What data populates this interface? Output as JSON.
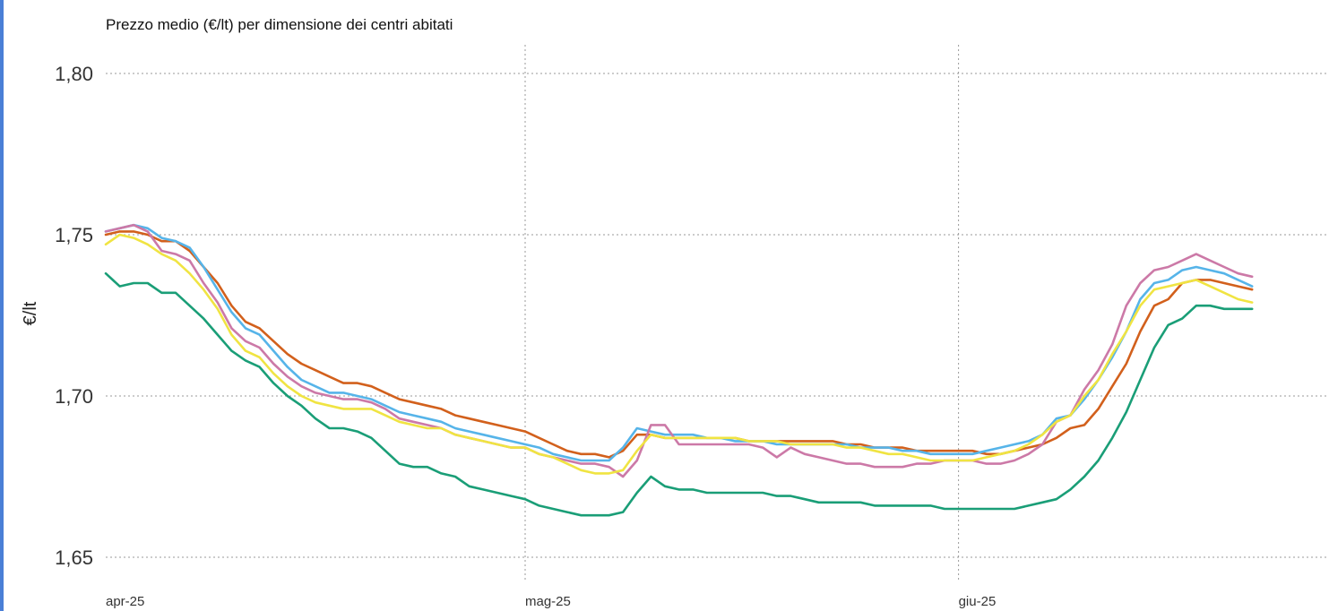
{
  "chart_data": {
    "type": "line",
    "title": "Prezzo medio (€/lt) per dimensione dei centri abitati",
    "ylabel": "€/lt",
    "xlabel": "",
    "ylim": [
      1.645,
      1.81
    ],
    "yticks": [
      {
        "value": 1.65,
        "label": "1,65"
      },
      {
        "value": 1.7,
        "label": "1,70"
      },
      {
        "value": 1.75,
        "label": "1,75"
      },
      {
        "value": 1.8,
        "label": "1,80"
      }
    ],
    "xlim": [
      0,
      82
    ],
    "xticks": [
      {
        "value": 0,
        "label": "apr-25"
      },
      {
        "value": 30,
        "label": "mag-25"
      },
      {
        "value": 61,
        "label": "giu-25"
      }
    ],
    "grid": true,
    "legend": "none",
    "x": [
      0,
      1,
      2,
      3,
      4,
      5,
      6,
      7,
      8,
      9,
      10,
      11,
      12,
      13,
      14,
      15,
      16,
      17,
      18,
      19,
      20,
      21,
      22,
      23,
      24,
      25,
      26,
      27,
      28,
      29,
      30,
      31,
      32,
      33,
      34,
      35,
      36,
      37,
      38,
      39,
      40,
      41,
      42,
      43,
      44,
      45,
      46,
      47,
      48,
      49,
      50,
      51,
      52,
      53,
      54,
      55,
      56,
      57,
      58,
      59,
      60,
      61,
      62,
      63,
      64,
      65,
      66,
      67,
      68,
      69,
      70,
      71,
      72,
      73,
      74,
      75,
      76,
      77,
      78,
      79,
      80,
      81,
      82
    ],
    "series": [
      {
        "color": "#d2601c",
        "values": [
          1.75,
          1.751,
          1.751,
          1.75,
          1.748,
          1.748,
          1.745,
          1.74,
          1.735,
          1.728,
          1.723,
          1.721,
          1.717,
          1.713,
          1.71,
          1.708,
          1.706,
          1.704,
          1.704,
          1.703,
          1.701,
          1.699,
          1.698,
          1.697,
          1.696,
          1.694,
          1.693,
          1.692,
          1.691,
          1.69,
          1.689,
          1.687,
          1.685,
          1.683,
          1.682,
          1.682,
          1.681,
          1.683,
          1.688,
          1.688,
          1.687,
          1.687,
          1.687,
          1.687,
          1.687,
          1.687,
          1.686,
          1.686,
          1.686,
          1.686,
          1.686,
          1.686,
          1.686,
          1.685,
          1.685,
          1.684,
          1.684,
          1.684,
          1.683,
          1.683,
          1.683,
          1.683,
          1.683,
          1.682,
          1.682,
          1.683,
          1.684,
          1.685,
          1.687,
          1.69,
          1.691,
          1.696,
          1.703,
          1.71,
          1.72,
          1.728,
          1.73,
          1.735,
          1.736,
          1.736,
          1.735,
          1.734,
          1.733
        ]
      },
      {
        "color": "#56b4e9",
        "values": [
          1.751,
          1.752,
          1.753,
          1.752,
          1.749,
          1.748,
          1.746,
          1.74,
          1.733,
          1.726,
          1.721,
          1.719,
          1.714,
          1.709,
          1.705,
          1.703,
          1.701,
          1.701,
          1.7,
          1.699,
          1.697,
          1.695,
          1.694,
          1.693,
          1.692,
          1.69,
          1.689,
          1.688,
          1.687,
          1.686,
          1.685,
          1.684,
          1.682,
          1.681,
          1.68,
          1.68,
          1.68,
          1.684,
          1.69,
          1.689,
          1.688,
          1.688,
          1.688,
          1.687,
          1.687,
          1.686,
          1.686,
          1.686,
          1.685,
          1.685,
          1.685,
          1.685,
          1.685,
          1.685,
          1.684,
          1.684,
          1.684,
          1.683,
          1.683,
          1.682,
          1.682,
          1.682,
          1.682,
          1.683,
          1.684,
          1.685,
          1.686,
          1.688,
          1.693,
          1.694,
          1.699,
          1.705,
          1.712,
          1.72,
          1.73,
          1.735,
          1.736,
          1.739,
          1.74,
          1.739,
          1.738,
          1.736,
          1.734
        ]
      },
      {
        "color": "#cc79a7",
        "values": [
          1.751,
          1.752,
          1.753,
          1.751,
          1.745,
          1.744,
          1.742,
          1.735,
          1.729,
          1.721,
          1.717,
          1.715,
          1.71,
          1.706,
          1.703,
          1.701,
          1.7,
          1.699,
          1.699,
          1.698,
          1.696,
          1.693,
          1.692,
          1.691,
          1.69,
          1.688,
          1.687,
          1.686,
          1.685,
          1.684,
          1.684,
          1.682,
          1.681,
          1.68,
          1.679,
          1.679,
          1.678,
          1.675,
          1.68,
          1.691,
          1.691,
          1.685,
          1.685,
          1.685,
          1.685,
          1.685,
          1.685,
          1.684,
          1.681,
          1.684,
          1.682,
          1.681,
          1.68,
          1.679,
          1.679,
          1.678,
          1.678,
          1.678,
          1.679,
          1.679,
          1.68,
          1.68,
          1.68,
          1.679,
          1.679,
          1.68,
          1.682,
          1.685,
          1.692,
          1.694,
          1.702,
          1.708,
          1.716,
          1.728,
          1.735,
          1.739,
          1.74,
          1.742,
          1.744,
          1.742,
          1.74,
          1.738,
          1.737
        ]
      },
      {
        "color": "#f0e442",
        "values": [
          1.747,
          1.75,
          1.749,
          1.747,
          1.744,
          1.742,
          1.738,
          1.733,
          1.727,
          1.719,
          1.714,
          1.712,
          1.707,
          1.703,
          1.7,
          1.698,
          1.697,
          1.696,
          1.696,
          1.696,
          1.694,
          1.692,
          1.691,
          1.69,
          1.69,
          1.688,
          1.687,
          1.686,
          1.685,
          1.684,
          1.684,
          1.682,
          1.681,
          1.679,
          1.677,
          1.676,
          1.676,
          1.677,
          1.683,
          1.688,
          1.687,
          1.687,
          1.687,
          1.687,
          1.687,
          1.687,
          1.686,
          1.686,
          1.686,
          1.685,
          1.685,
          1.685,
          1.685,
          1.684,
          1.684,
          1.683,
          1.682,
          1.682,
          1.681,
          1.68,
          1.68,
          1.68,
          1.68,
          1.681,
          1.682,
          1.683,
          1.685,
          1.688,
          1.692,
          1.694,
          1.7,
          1.705,
          1.713,
          1.72,
          1.728,
          1.733,
          1.734,
          1.735,
          1.736,
          1.734,
          1.732,
          1.73,
          1.729
        ]
      },
      {
        "color": "#1a9e77",
        "values": [
          1.738,
          1.734,
          1.735,
          1.735,
          1.732,
          1.732,
          1.728,
          1.724,
          1.719,
          1.714,
          1.711,
          1.709,
          1.704,
          1.7,
          1.697,
          1.693,
          1.69,
          1.69,
          1.689,
          1.687,
          1.683,
          1.679,
          1.678,
          1.678,
          1.676,
          1.675,
          1.672,
          1.671,
          1.67,
          1.669,
          1.668,
          1.666,
          1.665,
          1.664,
          1.663,
          1.663,
          1.663,
          1.664,
          1.67,
          1.675,
          1.672,
          1.671,
          1.671,
          1.67,
          1.67,
          1.67,
          1.67,
          1.67,
          1.669,
          1.669,
          1.668,
          1.667,
          1.667,
          1.667,
          1.667,
          1.666,
          1.666,
          1.666,
          1.666,
          1.666,
          1.665,
          1.665,
          1.665,
          1.665,
          1.665,
          1.665,
          1.666,
          1.667,
          1.668,
          1.671,
          1.675,
          1.68,
          1.687,
          1.695,
          1.705,
          1.715,
          1.722,
          1.724,
          1.728,
          1.728,
          1.727,
          1.727,
          1.727
        ]
      }
    ]
  }
}
